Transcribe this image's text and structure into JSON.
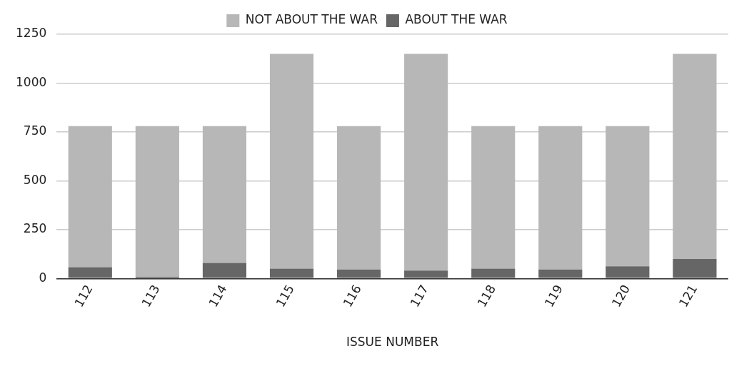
{
  "chart_data": {
    "type": "bar",
    "stacked": true,
    "xlabel": "ISSUE NUMBER",
    "categories": [
      "112",
      "113",
      "114",
      "115",
      "116",
      "117",
      "118",
      "119",
      "120",
      "121"
    ],
    "series": [
      {
        "name": "ABOUT THE WAR",
        "color": "#666666",
        "values": [
          58,
          8,
          80,
          50,
          46,
          40,
          50,
          46,
          62,
          100
        ]
      },
      {
        "name": "NOT ABOUT THE WAR",
        "color": "#b7b7b7",
        "values": [
          722,
          772,
          700,
          1100,
          734,
          1110,
          730,
          734,
          718,
          1050
        ]
      }
    ],
    "ylim": [
      0,
      1250
    ],
    "yticks": [
      0,
      250,
      500,
      750,
      1000,
      1250
    ],
    "grid": "y",
    "legend": "top"
  }
}
